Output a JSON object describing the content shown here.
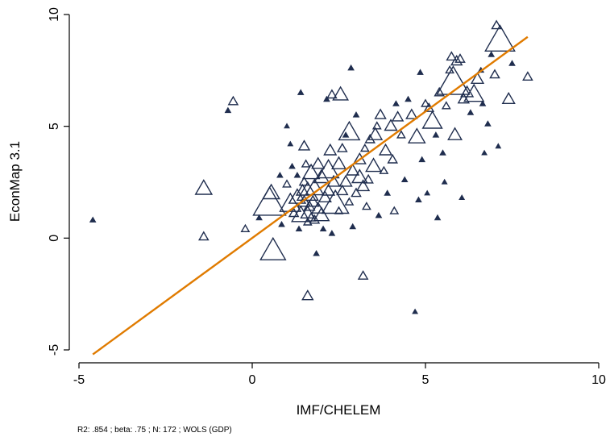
{
  "chart_data": {
    "type": "scatter",
    "title": "",
    "xlabel": "IMF/CHELEM",
    "ylabel": "EconMap 3.1",
    "note": "R2: .854 ; beta: .75 ; N: 172 ; WOLS (GDP)",
    "xlim": [
      -5,
      10
    ],
    "ylim": [
      -5,
      10
    ],
    "xticks": [
      -5,
      0,
      5,
      10
    ],
    "yticks": [
      -5,
      0,
      5,
      10
    ],
    "x_tick_labels": [
      "-5",
      "0",
      "5",
      "10"
    ],
    "y_tick_labels": [
      "-5",
      "0",
      "5",
      "10"
    ],
    "grid": false,
    "legend": "none",
    "marker": "hollow triangle (large) / filled triangle (small), size proportional to GDP weight",
    "colors": {
      "points": "#1f2d4e",
      "fit_line": "#e07b00",
      "axes": "#000000"
    },
    "fit_line": {
      "x": [
        -4.6,
        7.95
      ],
      "y": [
        -5.2,
        9.0
      ]
    },
    "series": [
      {
        "name": "",
        "points": [
          {
            "x": -4.6,
            "y": 0.8,
            "w": 0.1
          },
          {
            "x": -1.4,
            "y": 0.05,
            "w": 0.2
          },
          {
            "x": -1.4,
            "y": 2.2,
            "w": 0.45
          },
          {
            "x": -0.7,
            "y": 5.7,
            "w": 0.1
          },
          {
            "x": -0.55,
            "y": 6.1,
            "w": 0.2
          },
          {
            "x": -0.2,
            "y": 0.4,
            "w": 0.15
          },
          {
            "x": 0.2,
            "y": 0.9,
            "w": 0.1
          },
          {
            "x": 0.5,
            "y": 1.5,
            "w": 1.0
          },
          {
            "x": 0.55,
            "y": 2.0,
            "w": 0.45
          },
          {
            "x": 0.6,
            "y": -0.6,
            "w": 0.75
          },
          {
            "x": 0.8,
            "y": 2.8,
            "w": 0.1
          },
          {
            "x": 0.85,
            "y": 0.6,
            "w": 0.1
          },
          {
            "x": 1.0,
            "y": 2.4,
            "w": 0.15
          },
          {
            "x": 1.0,
            "y": 5.0,
            "w": 0.08
          },
          {
            "x": 1.1,
            "y": 1.5,
            "w": 0.6
          },
          {
            "x": 1.1,
            "y": 4.2,
            "w": 0.08
          },
          {
            "x": 1.15,
            "y": 3.2,
            "w": 0.1
          },
          {
            "x": 1.2,
            "y": 1.1,
            "w": 0.2
          },
          {
            "x": 1.3,
            "y": 1.8,
            "w": 0.45
          },
          {
            "x": 1.3,
            "y": 2.8,
            "w": 0.1
          },
          {
            "x": 1.35,
            "y": 0.4,
            "w": 0.1
          },
          {
            "x": 1.4,
            "y": 6.5,
            "w": 0.1
          },
          {
            "x": 1.4,
            "y": 1.0,
            "w": 0.5
          },
          {
            "x": 1.45,
            "y": 2.1,
            "w": 0.3
          },
          {
            "x": 1.5,
            "y": 1.6,
            "w": 0.3
          },
          {
            "x": 1.5,
            "y": 2.5,
            "w": 0.2
          },
          {
            "x": 1.5,
            "y": 4.1,
            "w": 0.25
          },
          {
            "x": 1.55,
            "y": 3.3,
            "w": 0.15
          },
          {
            "x": 1.6,
            "y": 1.1,
            "w": 0.35
          },
          {
            "x": 1.6,
            "y": 0.7,
            "w": 0.15
          },
          {
            "x": 1.6,
            "y": 2.0,
            "w": 0.6
          },
          {
            "x": 1.6,
            "y": -2.6,
            "w": 0.25
          },
          {
            "x": 1.65,
            "y": 1.4,
            "w": 0.25
          },
          {
            "x": 1.7,
            "y": 2.9,
            "w": 0.45
          },
          {
            "x": 1.7,
            "y": 0.9,
            "w": 0.2
          },
          {
            "x": 1.75,
            "y": 1.6,
            "w": 0.3
          },
          {
            "x": 1.8,
            "y": 2.2,
            "w": 0.5
          },
          {
            "x": 1.8,
            "y": 0.8,
            "w": 0.2
          },
          {
            "x": 1.85,
            "y": -0.7,
            "w": 0.1
          },
          {
            "x": 1.9,
            "y": 3.3,
            "w": 0.3
          },
          {
            "x": 1.9,
            "y": 1.3,
            "w": 0.3
          },
          {
            "x": 2.0,
            "y": 1.0,
            "w": 0.4
          },
          {
            "x": 2.0,
            "y": 2.7,
            "w": 0.4
          },
          {
            "x": 2.05,
            "y": 0.4,
            "w": 0.1
          },
          {
            "x": 2.1,
            "y": 1.8,
            "w": 0.3
          },
          {
            "x": 2.15,
            "y": 6.2,
            "w": 0.1
          },
          {
            "x": 2.2,
            "y": 3.0,
            "w": 0.6
          },
          {
            "x": 2.2,
            "y": 2.1,
            "w": 0.3
          },
          {
            "x": 2.25,
            "y": 3.9,
            "w": 0.3
          },
          {
            "x": 2.3,
            "y": 6.4,
            "w": 0.2
          },
          {
            "x": 2.3,
            "y": 0.2,
            "w": 0.1
          },
          {
            "x": 2.35,
            "y": 2.5,
            "w": 0.3
          },
          {
            "x": 2.4,
            "y": 1.5,
            "w": 0.8
          },
          {
            "x": 2.5,
            "y": 3.3,
            "w": 0.35
          },
          {
            "x": 2.5,
            "y": 1.2,
            "w": 0.15
          },
          {
            "x": 2.55,
            "y": 6.4,
            "w": 0.4
          },
          {
            "x": 2.6,
            "y": 2.1,
            "w": 0.25
          },
          {
            "x": 2.6,
            "y": 4.0,
            "w": 0.2
          },
          {
            "x": 2.7,
            "y": 4.6,
            "w": 0.1
          },
          {
            "x": 2.7,
            "y": 2.5,
            "w": 0.3
          },
          {
            "x": 2.8,
            "y": 4.7,
            "w": 0.6
          },
          {
            "x": 2.8,
            "y": 1.6,
            "w": 0.15
          },
          {
            "x": 2.85,
            "y": 7.6,
            "w": 0.1
          },
          {
            "x": 2.9,
            "y": 3.0,
            "w": 0.3
          },
          {
            "x": 2.9,
            "y": 0.5,
            "w": 0.1
          },
          {
            "x": 3.0,
            "y": 5.5,
            "w": 0.1
          },
          {
            "x": 3.0,
            "y": 2.0,
            "w": 0.2
          },
          {
            "x": 3.1,
            "y": 3.5,
            "w": 0.3
          },
          {
            "x": 3.1,
            "y": 2.7,
            "w": 0.4
          },
          {
            "x": 3.2,
            "y": -1.7,
            "w": 0.2
          },
          {
            "x": 3.2,
            "y": 2.3,
            "w": 0.3
          },
          {
            "x": 3.25,
            "y": 4.0,
            "w": 0.15
          },
          {
            "x": 3.3,
            "y": 1.4,
            "w": 0.15
          },
          {
            "x": 3.35,
            "y": 2.6,
            "w": 0.2
          },
          {
            "x": 3.4,
            "y": 4.4,
            "w": 0.2
          },
          {
            "x": 3.5,
            "y": 3.2,
            "w": 0.4
          },
          {
            "x": 3.55,
            "y": 4.6,
            "w": 0.35
          },
          {
            "x": 3.6,
            "y": 5.0,
            "w": 0.15
          },
          {
            "x": 3.65,
            "y": 1.0,
            "w": 0.1
          },
          {
            "x": 3.7,
            "y": 5.5,
            "w": 0.25
          },
          {
            "x": 3.8,
            "y": 3.0,
            "w": 0.15
          },
          {
            "x": 3.85,
            "y": 3.9,
            "w": 0.3
          },
          {
            "x": 3.9,
            "y": 2.0,
            "w": 0.1
          },
          {
            "x": 4.0,
            "y": 5.0,
            "w": 0.3
          },
          {
            "x": 4.05,
            "y": 3.5,
            "w": 0.2
          },
          {
            "x": 4.1,
            "y": 1.2,
            "w": 0.15
          },
          {
            "x": 4.15,
            "y": 6.0,
            "w": 0.1
          },
          {
            "x": 4.2,
            "y": 5.4,
            "w": 0.25
          },
          {
            "x": 4.3,
            "y": 4.6,
            "w": 0.15
          },
          {
            "x": 4.4,
            "y": 2.6,
            "w": 0.1
          },
          {
            "x": 4.5,
            "y": 6.2,
            "w": 0.1
          },
          {
            "x": 4.6,
            "y": 5.5,
            "w": 0.25
          },
          {
            "x": 4.7,
            "y": -3.3,
            "w": 0.08
          },
          {
            "x": 4.75,
            "y": 4.5,
            "w": 0.45
          },
          {
            "x": 4.8,
            "y": 1.7,
            "w": 0.1
          },
          {
            "x": 4.85,
            "y": 7.4,
            "w": 0.1
          },
          {
            "x": 4.9,
            "y": 3.5,
            "w": 0.1
          },
          {
            "x": 5.0,
            "y": 6.0,
            "w": 0.15
          },
          {
            "x": 5.05,
            "y": 2.0,
            "w": 0.08
          },
          {
            "x": 5.1,
            "y": 5.8,
            "w": 0.2
          },
          {
            "x": 5.2,
            "y": 5.2,
            "w": 0.55
          },
          {
            "x": 5.3,
            "y": 4.6,
            "w": 0.1
          },
          {
            "x": 5.35,
            "y": 0.9,
            "w": 0.1
          },
          {
            "x": 5.4,
            "y": 6.5,
            "w": 0.2
          },
          {
            "x": 5.5,
            "y": 3.8,
            "w": 0.1
          },
          {
            "x": 5.55,
            "y": 2.5,
            "w": 0.08
          },
          {
            "x": 5.6,
            "y": 5.9,
            "w": 0.15
          },
          {
            "x": 5.7,
            "y": 7.5,
            "w": 0.15
          },
          {
            "x": 5.75,
            "y": 8.1,
            "w": 0.2
          },
          {
            "x": 5.8,
            "y": 6.9,
            "w": 1.0
          },
          {
            "x": 5.85,
            "y": 4.6,
            "w": 0.35
          },
          {
            "x": 5.9,
            "y": 7.9,
            "w": 0.25
          },
          {
            "x": 6.0,
            "y": 8.0,
            "w": 0.2
          },
          {
            "x": 6.05,
            "y": 1.8,
            "w": 0.08
          },
          {
            "x": 6.1,
            "y": 6.2,
            "w": 0.25
          },
          {
            "x": 6.2,
            "y": 6.5,
            "w": 0.3
          },
          {
            "x": 6.3,
            "y": 5.6,
            "w": 0.1
          },
          {
            "x": 6.4,
            "y": 6.4,
            "w": 0.55
          },
          {
            "x": 6.5,
            "y": 7.1,
            "w": 0.3
          },
          {
            "x": 6.6,
            "y": 7.5,
            "w": 0.1
          },
          {
            "x": 6.65,
            "y": 6.0,
            "w": 0.1
          },
          {
            "x": 6.7,
            "y": 3.8,
            "w": 0.08
          },
          {
            "x": 6.8,
            "y": 5.1,
            "w": 0.1
          },
          {
            "x": 6.9,
            "y": 8.2,
            "w": 0.1
          },
          {
            "x": 7.0,
            "y": 7.3,
            "w": 0.2
          },
          {
            "x": 7.05,
            "y": 9.5,
            "w": 0.2
          },
          {
            "x": 7.1,
            "y": 4.1,
            "w": 0.08
          },
          {
            "x": 7.15,
            "y": 8.8,
            "w": 0.9
          },
          {
            "x": 7.4,
            "y": 6.2,
            "w": 0.3
          },
          {
            "x": 7.5,
            "y": 7.8,
            "w": 0.1
          },
          {
            "x": 7.95,
            "y": 7.2,
            "w": 0.2
          }
        ]
      }
    ]
  }
}
